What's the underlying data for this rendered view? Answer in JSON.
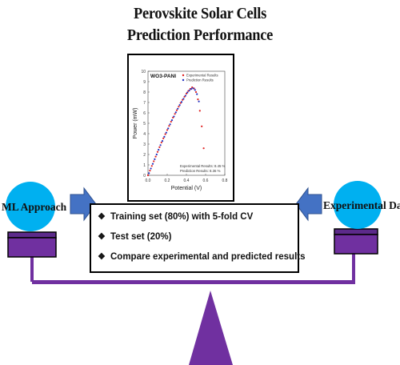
{
  "title": {
    "line1": "Perovskite Solar Cells",
    "line2": "Prediction Performance"
  },
  "chart_data": {
    "type": "scatter",
    "title": "WO3-PANI",
    "xlabel": "Potential (V)",
    "ylabel": "Power (mW)",
    "xlim": [
      0,
      0.8
    ],
    "ylim": [
      0,
      10
    ],
    "x_ticks": [
      "0.0",
      "0.2",
      "0.4",
      "0.6",
      "0.8"
    ],
    "y_ticks": [
      "0",
      "1",
      "2",
      "3",
      "4",
      "5",
      "6",
      "7",
      "8",
      "9",
      "10"
    ],
    "legend_position": "top-right",
    "annotations": [
      "Experimental Results: 8.45 %",
      "Prediction Results: 8.36 %"
    ],
    "series": [
      {
        "name": "Experimental Results",
        "color": "#e02020",
        "marker": "dot",
        "x": [
          0.0,
          0.02,
          0.04,
          0.06,
          0.08,
          0.1,
          0.12,
          0.14,
          0.16,
          0.18,
          0.2,
          0.22,
          0.24,
          0.26,
          0.28,
          0.3,
          0.32,
          0.34,
          0.36,
          0.38,
          0.4,
          0.42,
          0.44,
          0.46,
          0.48,
          0.5,
          0.52,
          0.54,
          0.56,
          0.58
        ],
        "y": [
          0.0,
          0.45,
          0.9,
          1.35,
          1.8,
          2.25,
          2.7,
          3.15,
          3.55,
          3.95,
          4.35,
          4.75,
          5.15,
          5.55,
          5.9,
          6.25,
          6.6,
          6.95,
          7.25,
          7.55,
          7.85,
          8.1,
          8.3,
          8.45,
          8.35,
          8.0,
          7.3,
          6.2,
          4.7,
          2.6
        ]
      },
      {
        "name": "Prediction Results",
        "color": "#2030c0",
        "marker": "dot",
        "x": [
          0.01,
          0.03,
          0.05,
          0.07,
          0.09,
          0.11,
          0.13,
          0.15,
          0.17,
          0.19,
          0.21,
          0.23,
          0.25,
          0.27,
          0.29,
          0.31,
          0.33,
          0.35,
          0.37,
          0.39,
          0.41,
          0.43,
          0.45,
          0.47,
          0.49,
          0.51,
          0.53
        ],
        "y": [
          0.2,
          0.65,
          1.1,
          1.55,
          2.0,
          2.45,
          2.9,
          3.3,
          3.7,
          4.1,
          4.5,
          4.9,
          5.3,
          5.65,
          6.05,
          6.4,
          6.75,
          7.05,
          7.35,
          7.65,
          7.95,
          8.15,
          8.3,
          8.36,
          8.2,
          7.8,
          7.1
        ]
      }
    ]
  },
  "training": {
    "items": [
      "Training set (80%) with 5-fold CV",
      "Test set (20%)",
      "Compare experimental and predicted results"
    ],
    "bullet": "❖"
  },
  "left": {
    "label": "ML Approach"
  },
  "right": {
    "label": "Experimental Data"
  },
  "colors": {
    "circle": "#00b0f0",
    "pan": "#7030a0",
    "beam": "#7030a0",
    "fulcrum": "#7030a0",
    "arrow": "#4472c4"
  }
}
